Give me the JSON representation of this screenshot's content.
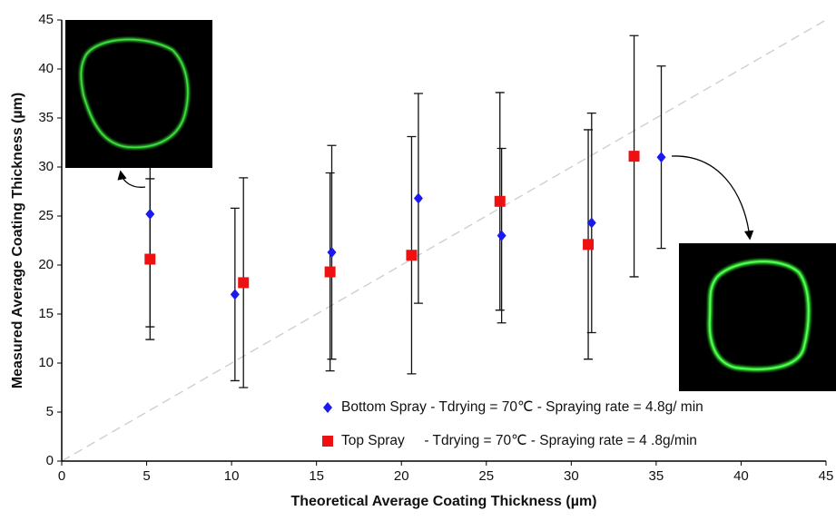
{
  "chart_data": {
    "type": "scatter",
    "xlabel": "Theoretical Average Coating Thickness (µm)",
    "ylabel": "Measured Average Coating Thickness (µm)",
    "xlim": [
      0,
      45
    ],
    "ylim": [
      0,
      45
    ],
    "xticks": [
      0,
      5,
      10,
      15,
      20,
      25,
      30,
      35,
      40,
      45
    ],
    "yticks": [
      0,
      5,
      10,
      15,
      20,
      25,
      30,
      35,
      40,
      45
    ],
    "series": [
      {
        "name": "Bottom Spray - Tdrying = 70℃ - Spraying rate = 4.8g/ min",
        "color": "#1a1aee",
        "marker": "diamond",
        "x": [
          5.2,
          10.2,
          15.9,
          21.0,
          25.9,
          31.2,
          35.3
        ],
        "values": [
          25.2,
          17.0,
          21.3,
          26.8,
          23.0,
          24.3,
          31.0
        ],
        "errors": [
          11.5,
          8.8,
          10.9,
          10.7,
          8.9,
          11.2,
          9.3
        ]
      },
      {
        "name": "Top Spray     - Tdrying = 70℃ - Spraying rate = 4 .8g/min",
        "color": "#ee1111",
        "marker": "square",
        "x": [
          5.2,
          10.7,
          15.8,
          20.6,
          25.8,
          31.0,
          33.7
        ],
        "values": [
          20.6,
          18.2,
          19.3,
          21.0,
          26.5,
          22.1,
          31.1
        ],
        "errors": [
          8.2,
          10.7,
          10.1,
          12.1,
          11.1,
          11.7,
          12.3
        ]
      }
    ]
  }
}
